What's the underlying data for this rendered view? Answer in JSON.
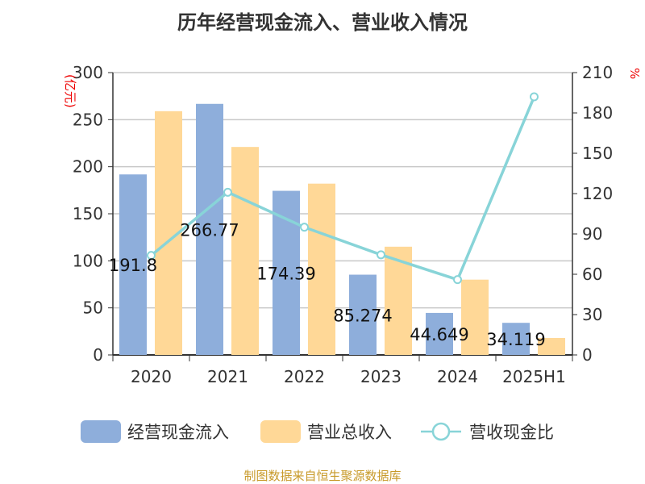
{
  "title": "历年经营现金流入、营业收入情况",
  "source": "制图数据来自恒生聚源数据库",
  "chart_data": {
    "type": "bar+line",
    "title": "历年经营现金流入、营业收入情况",
    "categories": [
      "2020",
      "2021",
      "2022",
      "2023",
      "2024",
      "2025H1"
    ],
    "y_left": {
      "label": "(亿元)",
      "range": [
        0,
        300
      ],
      "ticks": [
        0,
        50,
        100,
        150,
        200,
        250,
        300
      ]
    },
    "y_right": {
      "label": "%",
      "range": [
        0,
        210
      ],
      "ticks": [
        0,
        30,
        60,
        90,
        120,
        150,
        180,
        210
      ]
    },
    "grid": true,
    "legend_position": "bottom",
    "series": [
      {
        "name": "经营现金流入",
        "type": "bar",
        "axis": "left",
        "color": "#8eaedb",
        "values": [
          191.8,
          266.77,
          174.39,
          85.274,
          44.649,
          34.119
        ],
        "labels": [
          "191.8",
          "266.77",
          "174.39",
          "85.274",
          "44.649",
          "34.119"
        ]
      },
      {
        "name": "营业总收入",
        "type": "bar",
        "axis": "left",
        "color": "#ffd897",
        "values": [
          259,
          221,
          182,
          115,
          80,
          18
        ]
      },
      {
        "name": "营收现金比",
        "type": "line",
        "axis": "right",
        "color": "#88d4d8",
        "values": [
          74,
          121,
          95,
          74.5,
          56,
          192
        ]
      }
    ]
  }
}
